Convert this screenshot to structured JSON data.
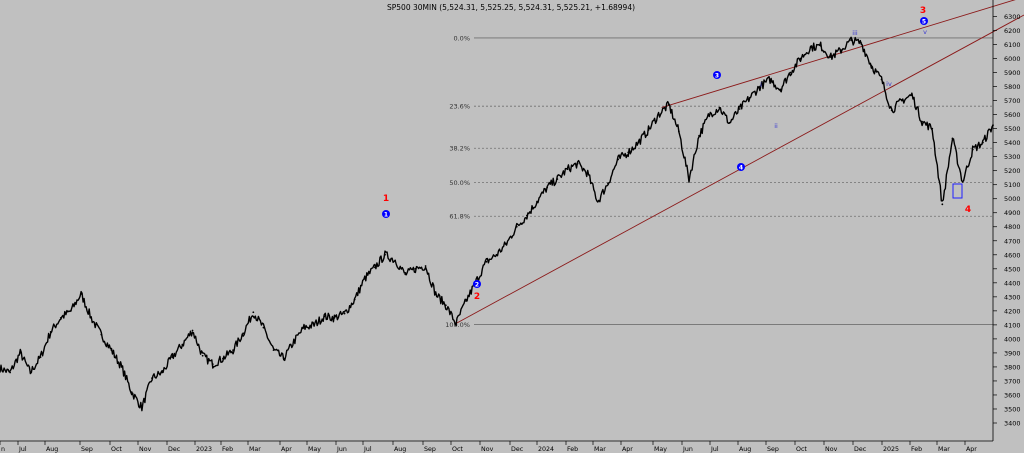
{
  "header": {
    "title": "SP500 30MIN (5,524.31, 5,525.25, 5,524.31, 5,525.21, +1.68994)"
  },
  "colors": {
    "background": "#c0c0c0",
    "price": "#000000",
    "trendline": "#8b1a1a",
    "fib_line": "#707070",
    "wave_primary": "#ff0000",
    "wave_minor": "#0000ff",
    "wave_sub": "#3a3ad0"
  },
  "chart_data": {
    "type": "line",
    "title": "SP500 30MIN (5,524.31, 5,525.25, 5,524.31, 5,525.21, +1.68994)",
    "xlabel": "",
    "ylabel": "",
    "ylim": [
      3300,
      6450
    ],
    "grid": false,
    "y_ticks": [
      3400,
      3500,
      3600,
      3700,
      3800,
      3900,
      4000,
      4100,
      4200,
      4300,
      4400,
      4500,
      4600,
      4700,
      4800,
      4900,
      5000,
      5100,
      5200,
      5300,
      5400,
      5500,
      5600,
      5700,
      5800,
      5900,
      6000,
      6100,
      6200,
      6300
    ],
    "x_ticks": [
      "n",
      "Jul",
      "Aug",
      "Sep",
      "Oct",
      "Nov",
      "Dec",
      "2023",
      "Feb",
      "Mar",
      "Apr",
      "May",
      "Jun",
      "Jul",
      "Aug",
      "Sep",
      "Oct",
      "Nov",
      "Dec",
      "2024",
      "Feb",
      "Mar",
      "Apr",
      "May",
      "Jun",
      "Jul",
      "Aug",
      "Sep",
      "Oct",
      "Nov",
      "Dec",
      "2025",
      "Feb",
      "Mar",
      "Apr"
    ],
    "series": [
      {
        "values": [
          [
            0,
            3790
          ],
          [
            1,
            3760
          ],
          [
            2,
            3900
          ],
          [
            3,
            3760
          ],
          [
            4,
            3870
          ],
          [
            5,
            4050
          ],
          [
            6,
            4150
          ],
          [
            7,
            4200
          ],
          [
            8,
            4320
          ],
          [
            9,
            4150
          ],
          [
            10,
            4030
          ],
          [
            11,
            3920
          ],
          [
            12,
            3800
          ],
          [
            13,
            3620
          ],
          [
            14,
            3510
          ],
          [
            15,
            3720
          ],
          [
            16,
            3760
          ],
          [
            17,
            3870
          ],
          [
            18,
            3960
          ],
          [
            19,
            4060
          ],
          [
            20,
            3880
          ],
          [
            21,
            3820
          ],
          [
            22,
            3860
          ],
          [
            23,
            3920
          ],
          [
            24,
            4040
          ],
          [
            25,
            4190
          ],
          [
            26,
            4080
          ],
          [
            27,
            3920
          ],
          [
            28,
            3860
          ],
          [
            29,
            3980
          ],
          [
            30,
            4080
          ],
          [
            31,
            4100
          ],
          [
            32,
            4160
          ],
          [
            33,
            4150
          ],
          [
            34,
            4180
          ],
          [
            35,
            4280
          ],
          [
            36,
            4430
          ],
          [
            37,
            4510
          ],
          [
            38,
            4600
          ],
          [
            39,
            4560
          ],
          [
            40,
            4460
          ],
          [
            41,
            4500
          ],
          [
            42,
            4520
          ],
          [
            43,
            4320
          ],
          [
            44,
            4240
          ],
          [
            45,
            4110
          ],
          [
            46,
            4270
          ],
          [
            47,
            4410
          ],
          [
            48,
            4550
          ],
          [
            49,
            4600
          ],
          [
            50,
            4680
          ],
          [
            51,
            4800
          ],
          [
            52,
            4880
          ],
          [
            53,
            4980
          ],
          [
            54,
            5080
          ],
          [
            55,
            5140
          ],
          [
            56,
            5210
          ],
          [
            57,
            5250
          ],
          [
            58,
            5180
          ],
          [
            59,
            4980
          ],
          [
            60,
            5110
          ],
          [
            61,
            5280
          ],
          [
            62,
            5330
          ],
          [
            63,
            5400
          ],
          [
            64,
            5490
          ],
          [
            65,
            5600
          ],
          [
            66,
            5670
          ],
          [
            67,
            5480
          ],
          [
            68,
            5140
          ],
          [
            69,
            5450
          ],
          [
            70,
            5600
          ],
          [
            71,
            5650
          ],
          [
            72,
            5540
          ],
          [
            73,
            5640
          ],
          [
            74,
            5720
          ],
          [
            75,
            5800
          ],
          [
            76,
            5850
          ],
          [
            77,
            5780
          ],
          [
            78,
            5900
          ],
          [
            79,
            6000
          ],
          [
            80,
            6080
          ],
          [
            81,
            6090
          ],
          [
            82,
            6010
          ],
          [
            83,
            6060
          ],
          [
            84,
            6130
          ],
          [
            85,
            6110
          ],
          [
            86,
            5950
          ],
          [
            87,
            5850
          ],
          [
            88,
            5630
          ],
          [
            89,
            5700
          ],
          [
            90,
            5740
          ],
          [
            91,
            5550
          ],
          [
            92,
            5500
          ],
          [
            93,
            4960
          ],
          [
            94,
            5430
          ],
          [
            95,
            5120
          ],
          [
            96,
            5350
          ],
          [
            97,
            5400
          ],
          [
            98,
            5525
          ]
        ]
      }
    ],
    "fib_levels": [
      {
        "label": "0.0%",
        "value": 6147
      },
      {
        "label": "23.6%",
        "value": 5660
      },
      {
        "label": "38.2%",
        "value": 5360
      },
      {
        "label": "50.0%",
        "value": 5115
      },
      {
        "label": "61.8%",
        "value": 4875
      },
      {
        "label": "100.0%",
        "value": 4103
      }
    ],
    "wave_labels": {
      "primary": [
        "1",
        "2",
        "3",
        "4"
      ],
      "minor": [
        "1",
        "2",
        "3",
        "4",
        "5"
      ],
      "sub": [
        "i",
        "ii",
        "iii",
        "iv",
        "v"
      ]
    }
  }
}
